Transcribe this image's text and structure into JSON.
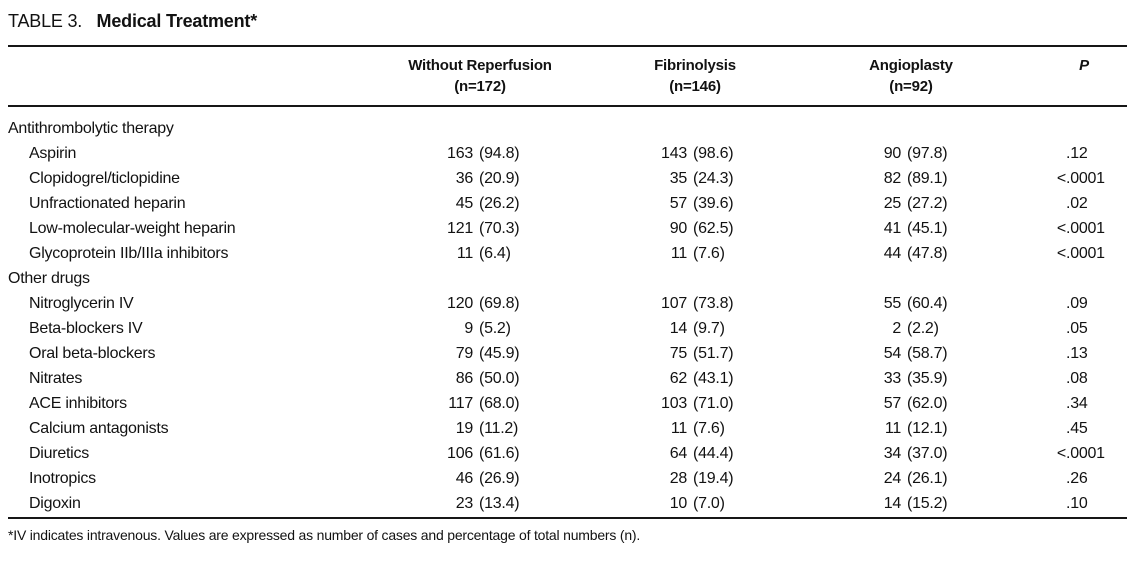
{
  "table": {
    "label_prefix": "TABLE 3.",
    "title": "Medical Treatment*",
    "columns": [
      {
        "line1": "Without Reperfusion",
        "line2": "(n=172)"
      },
      {
        "line1": "Fibrinolysis",
        "line2": "(n=146)"
      },
      {
        "line1": "Angioplasty",
        "line2": "(n=92)"
      },
      {
        "line1": "P",
        "line2": ""
      }
    ],
    "rows": [
      {
        "type": "section",
        "label": "Antithrombolytic therapy"
      },
      {
        "type": "item",
        "label": "Aspirin",
        "c1n": "163",
        "c1p": "(94.8)",
        "c2n": "143",
        "c2p": "(98.6)",
        "c3n": "90",
        "c3p": "(97.8)",
        "p_pre": "",
        "p_val": ".12"
      },
      {
        "type": "item",
        "label": "Clopidogrel/ticlopidine",
        "c1n": "36",
        "c1p": "(20.9)",
        "c2n": "35",
        "c2p": "(24.3)",
        "c3n": "82",
        "c3p": "(89.1)",
        "p_pre": "<",
        "p_val": ".0001"
      },
      {
        "type": "item",
        "label": "Unfractionated heparin",
        "c1n": "45",
        "c1p": "(26.2)",
        "c2n": "57",
        "c2p": "(39.6)",
        "c3n": "25",
        "c3p": "(27.2)",
        "p_pre": "",
        "p_val": ".02"
      },
      {
        "type": "item",
        "label": "Low-molecular-weight heparin",
        "c1n": "121",
        "c1p": "(70.3)",
        "c2n": "90",
        "c2p": "(62.5)",
        "c3n": "41",
        "c3p": "(45.1)",
        "p_pre": "<",
        "p_val": ".0001"
      },
      {
        "type": "item",
        "label": "Glycoprotein IIb/IIIa inhibitors",
        "c1n": "11",
        "c1p": "(6.4)",
        "c2n": "11",
        "c2p": "(7.6)",
        "c3n": "44",
        "c3p": "(47.8)",
        "p_pre": "<",
        "p_val": ".0001"
      },
      {
        "type": "section",
        "label": "Other drugs"
      },
      {
        "type": "item",
        "label": "Nitroglycerin IV",
        "c1n": "120",
        "c1p": "(69.8)",
        "c2n": "107",
        "c2p": "(73.8)",
        "c3n": "55",
        "c3p": "(60.4)",
        "p_pre": "",
        "p_val": ".09"
      },
      {
        "type": "item",
        "label": "Beta-blockers IV",
        "c1n": "9",
        "c1p": "(5.2)",
        "c2n": "14",
        "c2p": "(9.7)",
        "c3n": "2",
        "c3p": "(2.2)",
        "p_pre": "",
        "p_val": ".05"
      },
      {
        "type": "item",
        "label": "Oral beta-blockers",
        "c1n": "79",
        "c1p": "(45.9)",
        "c2n": "75",
        "c2p": "(51.7)",
        "c3n": "54",
        "c3p": "(58.7)",
        "p_pre": "",
        "p_val": ".13"
      },
      {
        "type": "item",
        "label": "Nitrates",
        "c1n": "86",
        "c1p": "(50.0)",
        "c2n": "62",
        "c2p": "(43.1)",
        "c3n": "33",
        "c3p": "(35.9)",
        "p_pre": "",
        "p_val": ".08"
      },
      {
        "type": "item",
        "label": "ACE inhibitors",
        "c1n": "117",
        "c1p": "(68.0)",
        "c2n": "103",
        "c2p": "(71.0)",
        "c3n": "57",
        "c3p": "(62.0)",
        "p_pre": "",
        "p_val": ".34"
      },
      {
        "type": "item",
        "label": "Calcium antagonists",
        "c1n": "19",
        "c1p": "(11.2)",
        "c2n": "11",
        "c2p": "(7.6)",
        "c3n": "11",
        "c3p": "(12.1)",
        "p_pre": "",
        "p_val": ".45"
      },
      {
        "type": "item",
        "label": "Diuretics",
        "c1n": "106",
        "c1p": "(61.6)",
        "c2n": "64",
        "c2p": "(44.4)",
        "c3n": "34",
        "c3p": "(37.0)",
        "p_pre": "<",
        "p_val": ".0001"
      },
      {
        "type": "item",
        "label": "Inotropics",
        "c1n": "46",
        "c1p": "(26.9)",
        "c2n": "28",
        "c2p": "(19.4)",
        "c3n": "24",
        "c3p": "(26.1)",
        "p_pre": "",
        "p_val": ".26"
      },
      {
        "type": "item",
        "label": "Digoxin",
        "c1n": "23",
        "c1p": "(13.4)",
        "c2n": "10",
        "c2p": "(7.0)",
        "c3n": "14",
        "c3p": "(15.2)",
        "p_pre": "",
        "p_val": ".10"
      }
    ],
    "footnote": "*IV indicates intravenous. Values are expressed as number of cases and percentage of total numbers (n)."
  }
}
